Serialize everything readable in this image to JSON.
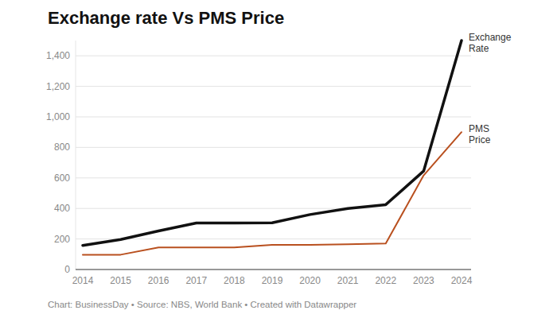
{
  "chart_data": {
    "type": "line",
    "title": "Exchange rate Vs PMS Price",
    "source": "Chart: BusinessDay • Source: NBS, World Bank • Created with Datawrapper",
    "categories": [
      "2014",
      "2015",
      "2016",
      "2017",
      "2018",
      "2019",
      "2020",
      "2021",
      "2022",
      "2023",
      "2024"
    ],
    "series": [
      {
        "name": "Exchange Rate",
        "color": "#111111",
        "values": [
          158,
          197,
          253,
          305,
          305,
          306,
          360,
          400,
          425,
          645,
          1500
        ]
      },
      {
        "name": "PMS Price",
        "color": "#b9501f",
        "values": [
          97,
          97,
          145,
          145,
          145,
          162,
          162,
          165,
          170,
          617,
          900
        ]
      }
    ],
    "ylim": [
      0,
      1500
    ],
    "yticks": [
      0,
      200,
      400,
      600,
      800,
      {
        "value": 1000,
        "label": "1,000"
      },
      {
        "value": 1200,
        "label": "1,200"
      },
      {
        "value": 1400,
        "label": "1,400"
      }
    ],
    "grid": true
  }
}
